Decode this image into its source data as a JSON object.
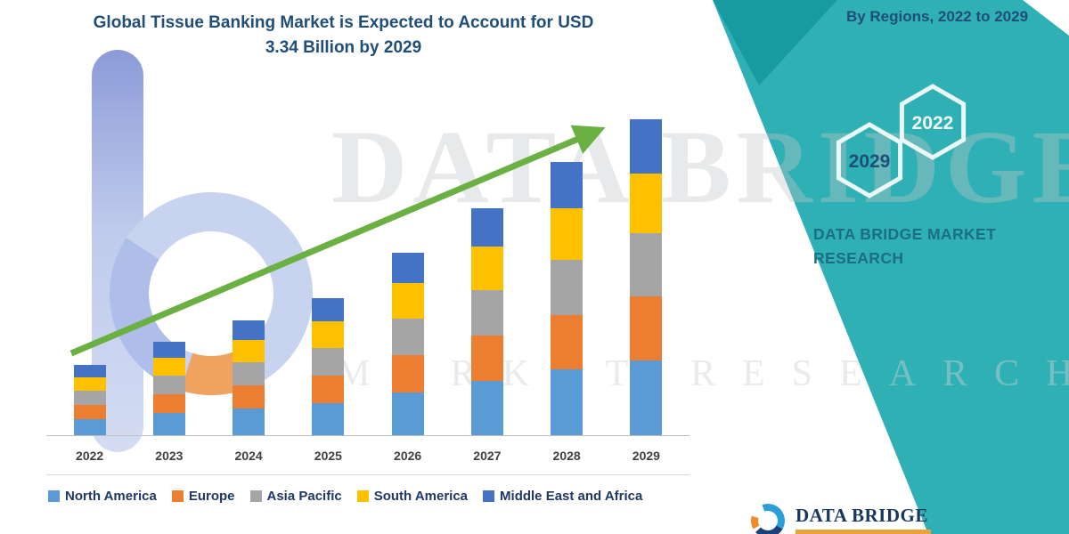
{
  "header": {
    "title_line1": "Global Tissue Banking Market is Expected to Account for USD",
    "title_line2": "3.34 Billion by 2029"
  },
  "right_panel": {
    "subtitle": "By Regions, 2022 to 2029",
    "hexagons": [
      {
        "year": "2022"
      },
      {
        "year": "2029"
      }
    ],
    "brand_line1": "DATA BRIDGE MARKET",
    "brand_line2": "RESEARCH",
    "panel_color": "#2FB0B4",
    "fold_color": "#189AA1"
  },
  "watermark": {
    "line1": "DATA BRIDGE",
    "line2": "MARKET RESEARCH"
  },
  "footer": {
    "brand_name": "DATA BRIDGE",
    "gold_color": "#E8A33D"
  },
  "chart_data": {
    "type": "bar",
    "stacked": true,
    "title": "Global Tissue Banking Market is Expected to Account for USD 3.34 Billion by 2029",
    "unit": "USD Billion",
    "categories": [
      "2022",
      "2023",
      "2024",
      "2025",
      "2026",
      "2027",
      "2028",
      "2029"
    ],
    "series": [
      {
        "name": "North America",
        "color": "#5B9BD5",
        "values": [
          0.18,
          0.24,
          0.29,
          0.35,
          0.46,
          0.58,
          0.7,
          0.8
        ]
      },
      {
        "name": "Europe",
        "color": "#ED7D31",
        "values": [
          0.15,
          0.2,
          0.25,
          0.29,
          0.39,
          0.48,
          0.58,
          0.67
        ]
      },
      {
        "name": "Asia Pacific",
        "color": "#A5A5A5",
        "values": [
          0.15,
          0.2,
          0.24,
          0.29,
          0.39,
          0.48,
          0.58,
          0.67
        ]
      },
      {
        "name": "South America",
        "color": "#FFC000",
        "values": [
          0.14,
          0.19,
          0.23,
          0.28,
          0.37,
          0.46,
          0.54,
          0.63
        ]
      },
      {
        "name": "Middle East and Africa",
        "color": "#4472C4",
        "values": [
          0.13,
          0.16,
          0.21,
          0.25,
          0.32,
          0.4,
          0.49,
          0.57
        ]
      }
    ],
    "totals": [
      0.75,
      0.99,
      1.22,
      1.46,
      1.93,
      2.4,
      2.89,
      3.34
    ],
    "ylim": [
      0,
      3.5
    ],
    "grid": false,
    "legend_position": "bottom",
    "trend_color": "#6AB043"
  }
}
